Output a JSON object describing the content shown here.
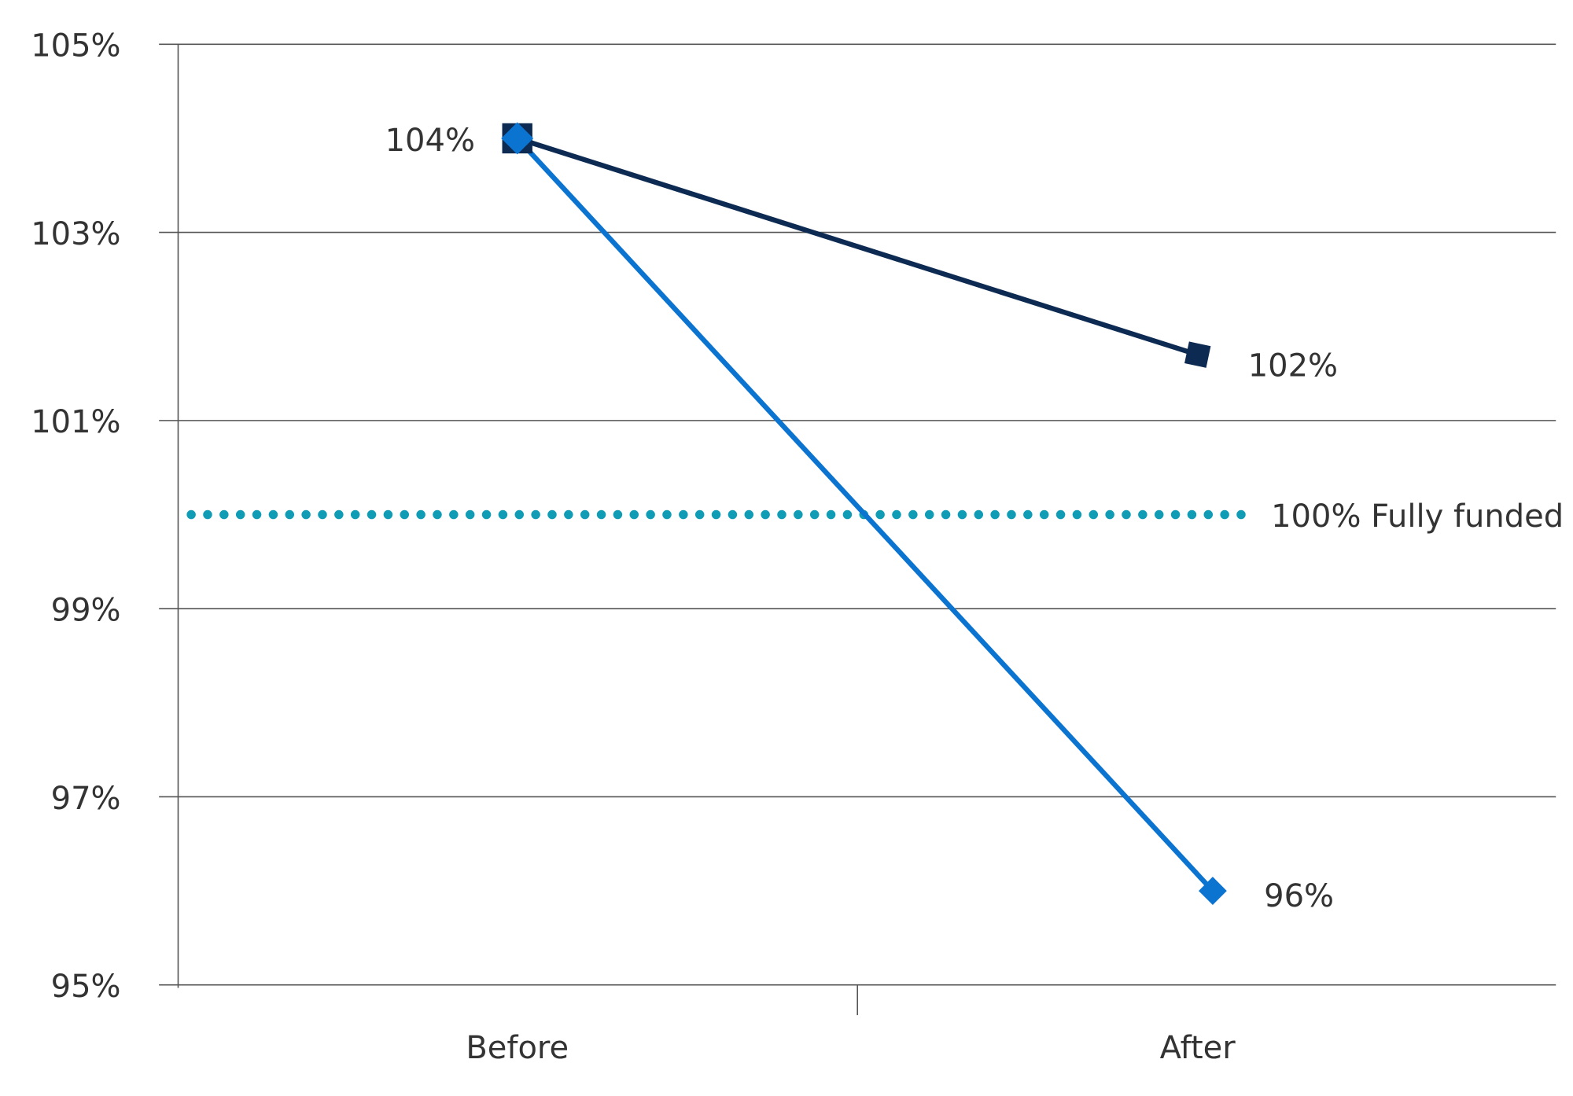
{
  "chart_data": {
    "type": "line",
    "categories": [
      "Before",
      "After"
    ],
    "yticks": [
      "95%",
      "97%",
      "99%",
      "101%",
      "103%",
      "105%"
    ],
    "ylim": [
      95,
      105
    ],
    "grid": true,
    "series": [
      {
        "values": [
          104,
          101.7
        ],
        "labels": [
          "104%",
          "102%"
        ],
        "marker": "square",
        "color": "#0d2a52"
      },
      {
        "values": [
          104,
          96
        ],
        "labels": [
          "",
          "96%"
        ],
        "marker": "diamond",
        "color": "#0b74d0"
      }
    ],
    "reference_line": {
      "value": 100,
      "label": "100% Fully funded",
      "style": "dotted",
      "color": "#109cb5"
    }
  }
}
